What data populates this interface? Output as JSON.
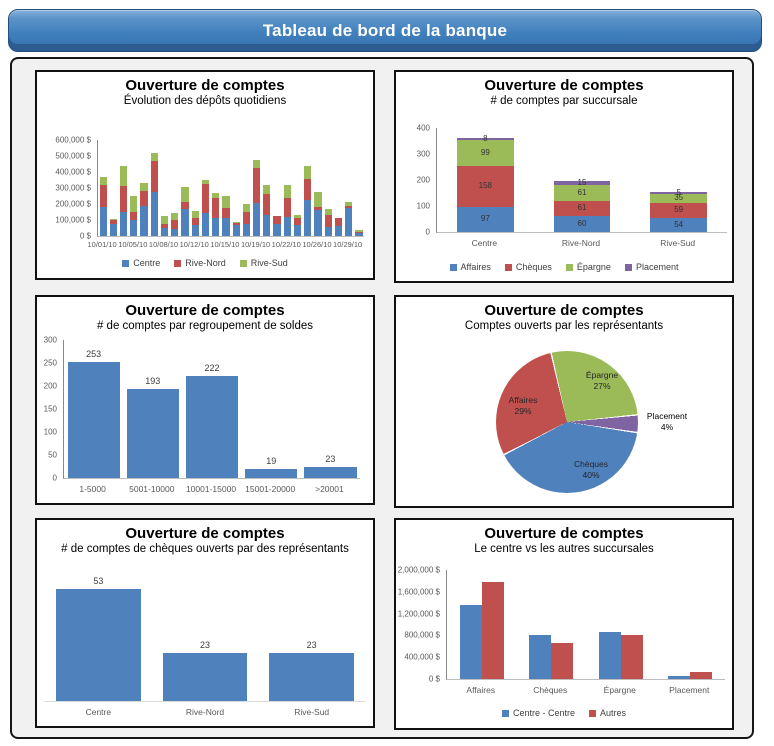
{
  "banner": {
    "title": "Tableau de bord de la banque"
  },
  "colors": {
    "blue": "#4F81BD",
    "red": "#C0504D",
    "green": "#9BBB59",
    "purple": "#8064A2"
  },
  "chart_data": [
    {
      "type": "stacked_bar",
      "title": "Ouverture de comptes",
      "subtitle": "Évolution des dépôts quotidiens",
      "ylim": [
        0,
        600000
      ],
      "y_tick_labels": [
        "600,000 $",
        "500,000 $",
        "400,000 $",
        "300,000 $",
        "200,000 $",
        "100,000 $",
        "0 $"
      ],
      "x_tick_labels": [
        "10/01/10",
        "10/05/10",
        "10/08/10",
        "10/12/10",
        "10/15/10",
        "10/19/10",
        "10/22/10",
        "10/26/10",
        "10/29/10"
      ],
      "series": [
        {
          "name": "Centre",
          "color": "#4F81BD",
          "values": [
            180000,
            75000,
            148000,
            100000,
            190000,
            272000,
            50000,
            45000,
            170000,
            70000,
            145000,
            115000,
            115000,
            70000,
            78000,
            207000,
            130000,
            78000,
            118000,
            70000,
            222000,
            160000,
            55000,
            62000,
            175000,
            20000
          ]
        },
        {
          "name": "Rive-Nord",
          "color": "#C0504D",
          "values": [
            140000,
            28000,
            165000,
            50000,
            90000,
            195000,
            26000,
            57000,
            45000,
            42000,
            180000,
            122000,
            63000,
            10000,
            74000,
            220000,
            135000,
            45000,
            122000,
            45000,
            135000,
            22000,
            78000,
            50000,
            15000,
            8000
          ]
        },
        {
          "name": "Rive-Sud",
          "color": "#9BBB59",
          "values": [
            52000,
            4000,
            122000,
            98000,
            50000,
            55000,
            51000,
            43000,
            90000,
            45000,
            27000,
            30000,
            75000,
            8000,
            48000,
            50000,
            57000,
            0,
            77000,
            17000,
            83000,
            92000,
            38000,
            0,
            20000,
            12000
          ]
        }
      ]
    },
    {
      "type": "stacked_bar",
      "title": "Ouverture de comptes",
      "subtitle": "# de comptes par succursale",
      "ylim": [
        0,
        400
      ],
      "y_tick_labels": [
        "400",
        "300",
        "200",
        "100",
        "0"
      ],
      "categories": [
        "Centre",
        "Rive-Nord",
        "Rive-Sud"
      ],
      "series": [
        {
          "name": "Affaires",
          "color": "#4F81BD",
          "values": [
            97,
            60,
            54
          ]
        },
        {
          "name": "Chèques",
          "color": "#C0504D",
          "values": [
            158,
            61,
            59
          ]
        },
        {
          "name": "Épargne",
          "color": "#9BBB59",
          "values": [
            99,
            61,
            35
          ]
        },
        {
          "name": "Placement",
          "color": "#8064A2",
          "values": [
            8,
            15,
            5
          ]
        }
      ]
    },
    {
      "type": "bar",
      "title": "Ouverture de comptes",
      "subtitle": "# de comptes par regroupement de soldes",
      "ylim": [
        0,
        300
      ],
      "y_tick_labels": [
        "300",
        "250",
        "200",
        "150",
        "100",
        "50",
        "0"
      ],
      "categories": [
        "1-5000",
        "5001-10000",
        "10001-15000",
        "15001-20000",
        ">20001"
      ],
      "values": [
        253,
        193,
        222,
        19,
        23
      ],
      "bar_color": "#4F81BD"
    },
    {
      "type": "pie",
      "title": "Ouverture de comptes",
      "subtitle": "Comptes ouverts par les représentants",
      "start_angle_deg": -13,
      "slices": [
        {
          "name": "Épargne",
          "pct": 27,
          "color": "#9BBB59"
        },
        {
          "name": "Placement",
          "pct": 4,
          "color": "#8064A2"
        },
        {
          "name": "Chèques",
          "pct": 40,
          "color": "#4F81BD"
        },
        {
          "name": "Affaires",
          "pct": 29,
          "color": "#C0504D"
        }
      ]
    },
    {
      "type": "bar",
      "title": "Ouverture de comptes",
      "subtitle": "# de comptes de chèques ouverts par des représentants",
      "ylim": [
        0,
        56
      ],
      "categories": [
        "Centre",
        "Rive-Nord",
        "Rive-Sud"
      ],
      "values": [
        53,
        23,
        23
      ],
      "bar_color": "#4F81BD"
    },
    {
      "type": "grouped_bar",
      "title": "Ouverture de comptes",
      "subtitle": "Le centre vs les autres succursales",
      "ylim": [
        0,
        2000000
      ],
      "y_tick_labels": [
        "2,000,000 $",
        "1,600,000 $",
        "1,200,000 $",
        "800,000 $",
        "400,000 $",
        "0 $"
      ],
      "categories": [
        "Affaires",
        "Chèques",
        "Épargne",
        "Placement"
      ],
      "series": [
        {
          "name": "Centre - Centre",
          "color": "#4F81BD",
          "values": [
            1350000,
            800000,
            870000,
            60000
          ]
        },
        {
          "name": "Autres",
          "color": "#C0504D",
          "values": [
            1780000,
            670000,
            800000,
            130000
          ]
        }
      ]
    }
  ]
}
